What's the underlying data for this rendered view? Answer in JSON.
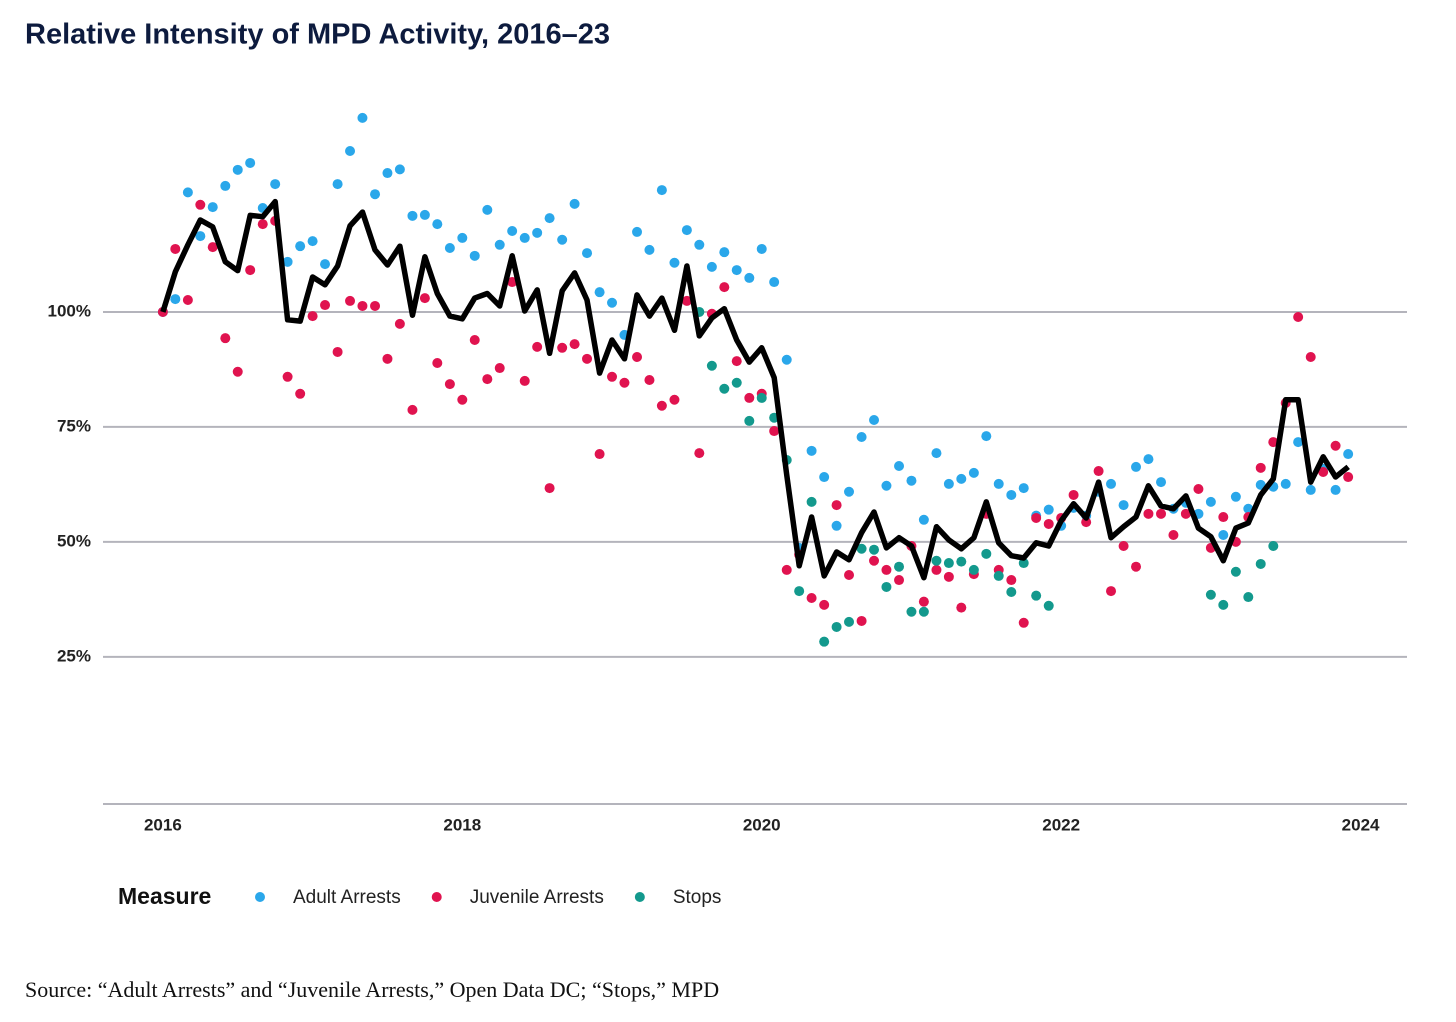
{
  "chart_data": {
    "type": "scatter",
    "title": "Relative Intensity of MPD Activity, 2016–23",
    "legend_title": "Measure",
    "source": "Source: “Adult Arrests” and “Juvenile Arrests,” Open Data DC; “Stops,” MPD",
    "xlim": [
      2015.6,
      2024.31
    ],
    "xticks": [
      2016,
      2018,
      2020,
      2022,
      2024
    ],
    "ylim": [
      -7,
      145
    ],
    "yticks": [
      {
        "value": 25,
        "label": "25%"
      },
      {
        "value": 50,
        "label": "50%"
      },
      {
        "value": 75,
        "label": "75%"
      },
      {
        "value": 100,
        "label": "100%"
      }
    ],
    "grid": true,
    "legend": "bottom",
    "x": [
      2016,
      2016.083,
      2016.167,
      2016.25,
      2016.333,
      2016.417,
      2016.5,
      2016.583,
      2016.667,
      2016.75,
      2016.833,
      2016.917,
      2017,
      2017.083,
      2017.167,
      2017.25,
      2017.333,
      2017.417,
      2017.5,
      2017.583,
      2017.667,
      2017.75,
      2017.833,
      2017.917,
      2018,
      2018.083,
      2018.167,
      2018.25,
      2018.333,
      2018.417,
      2018.5,
      2018.583,
      2018.667,
      2018.75,
      2018.833,
      2018.917,
      2019,
      2019.083,
      2019.167,
      2019.25,
      2019.333,
      2019.417,
      2019.5,
      2019.583,
      2019.667,
      2019.75,
      2019.833,
      2019.917,
      2020,
      2020.083,
      2020.167,
      2020.25,
      2020.333,
      2020.417,
      2020.5,
      2020.583,
      2020.667,
      2020.75,
      2020.833,
      2020.917,
      2021,
      2021.083,
      2021.167,
      2021.25,
      2021.333,
      2021.417,
      2021.5,
      2021.583,
      2021.667,
      2021.75,
      2021.833,
      2021.917,
      2022,
      2022.083,
      2022.167,
      2022.25,
      2022.333,
      2022.417,
      2022.5,
      2022.583,
      2022.667,
      2022.75,
      2022.833,
      2022.917,
      2023,
      2023.083,
      2023.167,
      2023.25,
      2023.333,
      2023.417,
      2023.5,
      2023.583,
      2023.667,
      2023.75,
      2023.833,
      2023.917
    ],
    "series": [
      {
        "name": "Adult Arrests",
        "color": "#2aa7ea",
        "values": [
          100,
          102.8,
          126,
          116.5,
          122.8,
          127.4,
          130.9,
          132.4,
          122.6,
          127.8,
          110.9,
          114.3,
          115.4,
          110.4,
          127.8,
          135,
          142.2,
          125.6,
          130.2,
          131,
          120.9,
          121.1,
          119.1,
          113.9,
          116.1,
          112.2,
          122.2,
          114.6,
          117.6,
          116.1,
          117.2,
          120.4,
          115.7,
          123.5,
          112.8,
          104.3,
          102,
          95,
          117.4,
          113.5,
          126.5,
          110.7,
          117.8,
          114.6,
          109.8,
          113,
          109.1,
          107.4,
          113.7,
          106.5,
          89.6,
          48.7,
          69.8,
          64.1,
          53.5,
          60.9,
          72.8,
          76.5,
          62.2,
          66.5,
          63.3,
          54.8,
          69.3,
          62.6,
          63.7,
          65,
          73,
          62.6,
          60.2,
          61.7,
          55.7,
          57,
          53.5,
          57.4,
          55.7,
          60.9,
          62.6,
          58,
          66.3,
          68,
          63,
          57.2,
          58.5,
          56.1,
          58.7,
          51.5,
          59.8,
          57.2,
          62.4,
          62,
          62.6,
          71.7,
          61.3,
          65.9,
          61.3,
          69.1
        ]
      },
      {
        "name": "Juvenile Arrests",
        "color": "#e0134f",
        "values": [
          100,
          113.7,
          102.6,
          123.3,
          114.1,
          94.3,
          87,
          109.1,
          119.1,
          119.8,
          85.9,
          82.2,
          99.1,
          101.5,
          91.3,
          102.4,
          101.3,
          101.3,
          89.8,
          97.4,
          78.7,
          103,
          88.9,
          84.3,
          80.9,
          93.9,
          85.4,
          87.8,
          106.5,
          85,
          92.4,
          61.7,
          92.2,
          93,
          89.8,
          69.1,
          85.9,
          84.6,
          90.2,
          85.2,
          79.6,
          80.9,
          102.4,
          69.3,
          99.6,
          105.4,
          89.3,
          81.3,
          82.2,
          74.1,
          43.9,
          47.2,
          37.8,
          36.3,
          58,
          42.8,
          32.8,
          45.9,
          43.9,
          41.7,
          49.1,
          37,
          43.9,
          42.4,
          35.7,
          43,
          56.1,
          43.9,
          41.7,
          32.4,
          55.2,
          53.9,
          55.2,
          60.2,
          54.3,
          65.4,
          39.3,
          49.1,
          44.6,
          56.1,
          56.1,
          51.5,
          56.1,
          61.5,
          48.7,
          55.4,
          50,
          55.4,
          66.1,
          71.7,
          80.2,
          98.9,
          90.2,
          65.2,
          70.9,
          64.1
        ]
      },
      {
        "name": "Stops",
        "color": "#13998d",
        "values": [
          null,
          null,
          null,
          null,
          null,
          null,
          null,
          null,
          null,
          null,
          null,
          null,
          null,
          null,
          null,
          null,
          null,
          null,
          null,
          null,
          null,
          null,
          null,
          null,
          null,
          null,
          null,
          null,
          null,
          null,
          null,
          null,
          null,
          null,
          null,
          null,
          null,
          null,
          null,
          null,
          null,
          null,
          null,
          100,
          88.3,
          83.3,
          84.6,
          76.3,
          81.3,
          77,
          67.8,
          39.3,
          58.7,
          28.3,
          31.5,
          32.6,
          48.5,
          48.3,
          40.2,
          44.6,
          34.8,
          34.8,
          45.9,
          45.4,
          45.7,
          43.9,
          47.4,
          42.6,
          39.1,
          45.4,
          38.3,
          36.1,
          null,
          null,
          null,
          null,
          null,
          null,
          null,
          null,
          null,
          null,
          null,
          null,
          38.5,
          36.3,
          43.5,
          38,
          45.2,
          49.1,
          null,
          null,
          null,
          null,
          null,
          null
        ]
      },
      {
        "type": "line",
        "color": "#000000",
        "values": [
          100,
          108.7,
          114.6,
          120,
          118.5,
          110.9,
          109,
          121,
          120.7,
          124,
          98.3,
          98,
          107.6,
          105.9,
          110,
          118.7,
          121.7,
          113.5,
          110.2,
          114.3,
          99.3,
          112,
          104,
          99.1,
          98.5,
          103,
          104,
          101.3,
          112.2,
          100.2,
          104.8,
          91,
          104.6,
          108.5,
          102.6,
          86.7,
          93.9,
          89.8,
          103.7,
          99.1,
          103,
          96,
          110,
          94.8,
          98.7,
          100.7,
          93.9,
          89.1,
          92.2,
          85.7,
          64.6,
          44.8,
          55.4,
          42.6,
          47.8,
          46.1,
          52,
          56.5,
          48.7,
          50.9,
          49.1,
          42.2,
          53.3,
          50.4,
          48.5,
          50.9,
          58.7,
          49.8,
          47,
          46.5,
          49.8,
          49.1,
          54.6,
          58.3,
          55.2,
          63,
          50.9,
          53.3,
          55.4,
          62.2,
          57.8,
          57.2,
          60,
          53,
          51.1,
          45.9,
          53,
          54.1,
          60.2,
          63.7,
          80.9,
          80.9,
          63,
          68.5,
          64.1,
          66.3
        ]
      }
    ]
  }
}
